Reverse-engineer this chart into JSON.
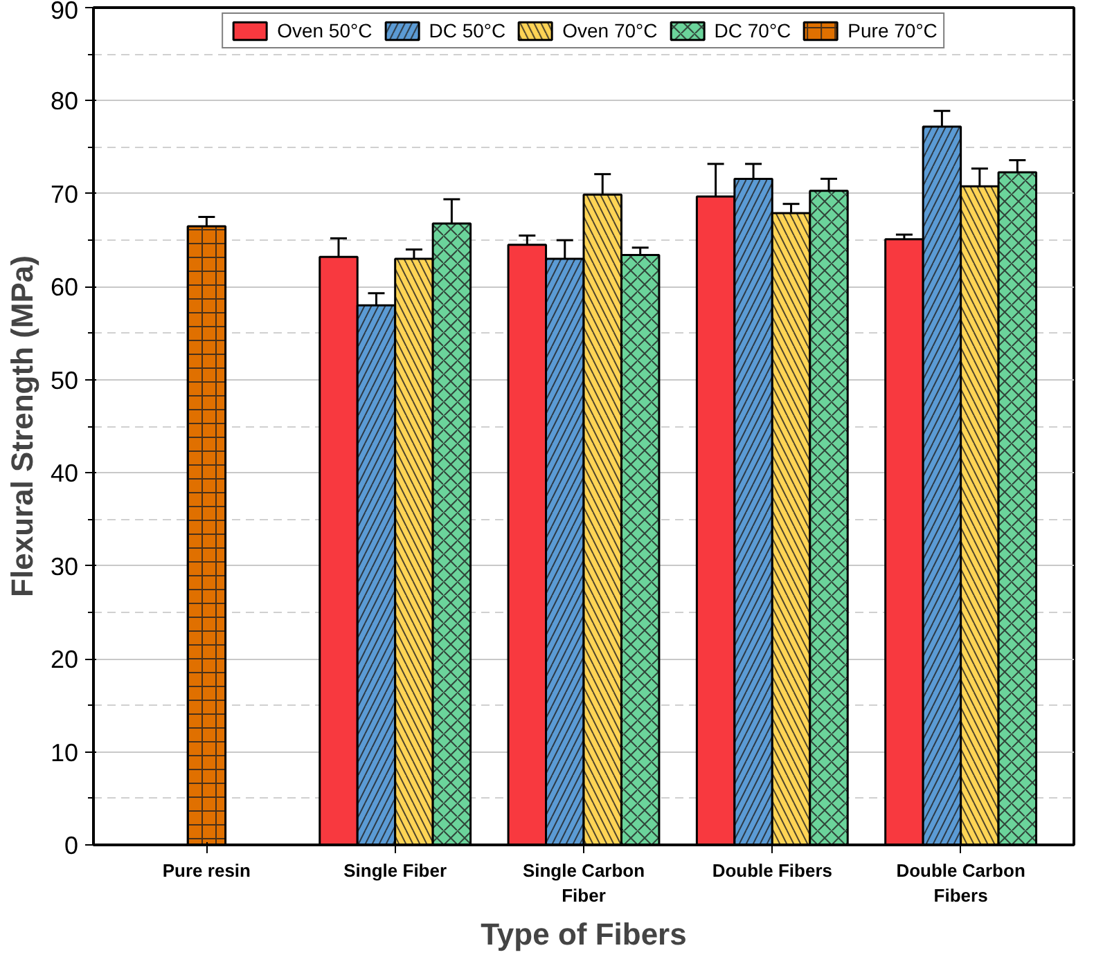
{
  "chart_data": {
    "type": "bar",
    "xlabel": "Type of Fibers",
    "ylabel": "Flexural Strength (MPa)",
    "categories": [
      "Pure resin",
      "Single Fiber",
      "Single Carbon Fiber",
      "Double Fibers",
      "Double Carbon Fibers"
    ],
    "series": [
      {
        "name": "Oven 50°C",
        "color": "#f8393f",
        "values": [
          null,
          63.2,
          64.5,
          69.7,
          65.1
        ],
        "errors": [
          null,
          2.0,
          1.0,
          3.5,
          0.5
        ]
      },
      {
        "name": "DC 50°C",
        "color": "#5b9bd5",
        "values": [
          null,
          58.0,
          63.0,
          71.6,
          77.2
        ],
        "errors": [
          null,
          1.3,
          2.0,
          1.6,
          1.7
        ]
      },
      {
        "name": "Oven 70°C",
        "color": "#ffd455",
        "values": [
          null,
          63.0,
          69.9,
          67.9,
          70.8
        ],
        "errors": [
          null,
          1.0,
          2.2,
          1.0,
          1.9
        ]
      },
      {
        "name": "DC 70°C",
        "color": "#6bd49b",
        "values": [
          null,
          66.8,
          63.4,
          70.3,
          72.3
        ],
        "errors": [
          null,
          2.6,
          0.8,
          1.3,
          1.3
        ]
      },
      {
        "name": "Pure 70°C",
        "color": "#e07000",
        "values": [
          66.5,
          null,
          null,
          null,
          null
        ],
        "errors": [
          1.0,
          null,
          null,
          null,
          null
        ]
      }
    ],
    "ylim": [
      0,
      90
    ],
    "yticks": [
      0,
      {
        "value": 5,
        "label": null
      },
      10,
      {
        "value": 15,
        "label": null
      },
      20,
      {
        "value": 25,
        "label": null
      },
      30,
      {
        "value": 35,
        "label": null
      },
      40,
      {
        "value": 45,
        "label": null
      },
      50,
      {
        "value": 55,
        "label": null
      },
      60,
      {
        "value": 65,
        "label": null
      },
      70,
      {
        "value": 75,
        "label": null
      },
      80,
      {
        "value": 85,
        "label": null
      },
      90
    ],
    "grid": "y",
    "legend": "top"
  }
}
